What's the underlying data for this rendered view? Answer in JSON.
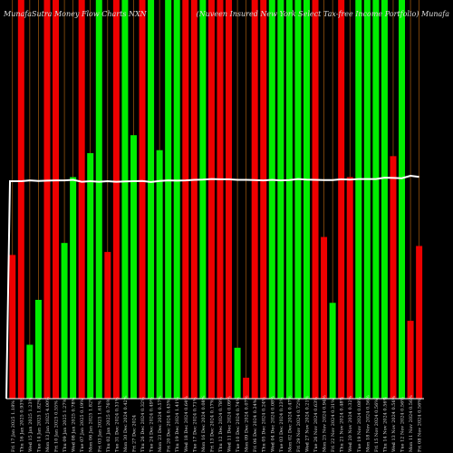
{
  "chart_data": {
    "type": "bar",
    "title_left": "MunafaSutra Money Flow Charts NXN",
    "title_right": "(Nuveen Insured New York Select Tax-free Income Portfolio) Munafa",
    "categories": [
      "Fri 17 Jan 2025 1.18% ",
      "Thu 16 Jan 2025 0.93% ",
      "Wed 15 Jan 2025 1.23% ",
      "Tue 14 Jan 2025 1.82% ",
      "Mon 13 Jan 2025 4.00% ",
      "Fri 10 Jan 2025 0.55% ",
      "Thu 09 Jan 2025 1.27% ",
      "Wed 08 Jan 2025 0.78% ",
      "Tue 07 Jan 2025 0.19% ",
      "Mon 06 Jan 2025 1.82% ",
      "Fri 03 Jan 2025 1.61% ",
      "Thu 02 Jan 2025 0.76% ",
      "Tue 31 Dec 2024 0.31% ",
      "Mon 30 Dec 2024 0.42% ",
      "Fri 27 Dec 2024 ",
      "Thu 26 Dec 2024 0.32% ",
      "Tue 24 Dec 2024 0.49% ",
      "Mon 23 Dec 2024 0.57% ",
      "Fri 20 Dec 2024 0.43% ",
      "Thu 19 Dec 2024 1.41% ",
      "Wed 18 Dec 2024 0.64% ",
      "Tue 17 Dec 2024 0.71% ",
      "Mon 16 Dec 2024 0.08% ",
      "Fri 13 Dec 2024 0.17% ",
      "Thu 12 Dec 2024 0.78% ",
      "Wed 11 Dec 2024 0.09% ",
      "Tue 10 Dec 2024 0.74% ",
      "Mon 09 Dec 2024 0.07% ",
      "Fri 06 Dec 2024 0.24% ",
      "Thu 05 Dec 2024 0.24% ",
      "Wed 04 Dec 2024 0.08% ",
      "Tue 03 Dec 2024 0.23% ",
      "Mon 02 Dec 2024 0.47% ",
      "Fri 29 Nov 2024 0.72% ",
      "Wed 27 Nov 2024 0.21% ",
      "Tue 26 Nov 2024 0.63% ",
      "Mon 25 Nov 2024 0.94% ",
      "Fri 22 Nov 2024 0.31% ",
      "Thu 21 Nov 2024 0.48% ",
      "Wed 20 Nov 2024 0.32% ",
      "Tue 19 Nov 2024 0.08% ",
      "Mon 18 Nov 2024 0.56% ",
      "Fri 15 Nov 2024 0.56% ",
      "Thu 14 Nov 2024 0.56% ",
      "Wed 13 Nov 2024 0.56% ",
      "Tue 12 Nov 2024 0.56% ",
      "Mon 11 Nov 2024 0.56% ",
      "Fri 08 Nov 2024 0.56% "
    ],
    "colors": [
      "red",
      "red",
      "green",
      "green",
      "red",
      "red",
      "green",
      "green",
      "red",
      "green",
      "green",
      "red",
      "red",
      "green",
      "green",
      "red",
      "green",
      "green",
      "green",
      "green",
      "red",
      "red",
      "green",
      "red",
      "red",
      "red",
      "green",
      "red",
      "red",
      "red",
      "green",
      "green",
      "green",
      "green",
      "green",
      "red",
      "red",
      "green",
      "red",
      "red",
      "green",
      "green",
      "green",
      "green",
      "red",
      "green",
      "red",
      "red"
    ],
    "values": [
      48,
      100,
      18,
      33,
      100,
      100,
      52,
      74,
      100,
      82,
      100,
      49,
      100,
      100,
      88,
      100,
      100,
      83,
      100,
      100,
      100,
      100,
      100,
      100,
      100,
      100,
      17,
      7,
      100,
      100,
      100,
      100,
      100,
      100,
      100,
      100,
      54,
      32,
      100,
      74,
      100,
      100,
      100,
      100,
      81,
      100,
      26,
      51
    ],
    "line_values": [
      61.5,
      61.5,
      61.8,
      61.6,
      61.7,
      61.8,
      61.8,
      62.0,
      61.3,
      61.5,
      61.3,
      61.5,
      61.3,
      61.4,
      61.5,
      61.6,
      61.2,
      61.6,
      61.8,
      61.7,
      61.8,
      62.0,
      62.1,
      62.3,
      62.2,
      62.2,
      62.0,
      62.0,
      61.9,
      61.8,
      62.0,
      61.8,
      61.9,
      62.3,
      62.1,
      62.0,
      61.9,
      61.9,
      62.2,
      62.1,
      62.3,
      62.3,
      62.3,
      62.8,
      62.7,
      62.6,
      63.5,
      63.1
    ],
    "line_start": 0,
    "ylim": [
      0,
      115
    ],
    "grid": "vertical",
    "bar_colors": {
      "green": "#00ee00",
      "red": "#ee0000",
      "grid": "#c06a10",
      "line": "#ffffff",
      "baseline": "#ffffff"
    }
  }
}
